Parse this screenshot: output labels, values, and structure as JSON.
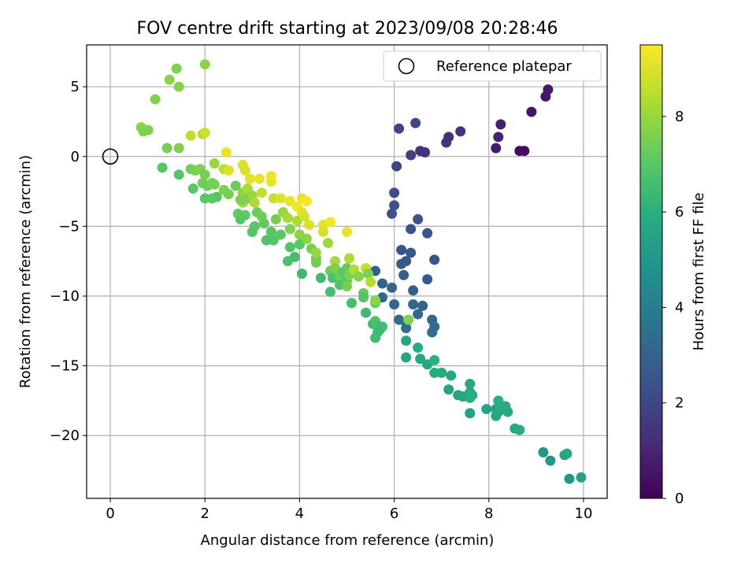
{
  "chart_data": {
    "type": "scatter",
    "title": "FOV centre drift starting at 2023/09/08 20:28:46",
    "xlabel": "Angular distance from reference (arcmin)",
    "ylabel": "Rotation from reference (arcmin)",
    "xlim": [
      -0.5,
      10.5
    ],
    "ylim": [
      -24.5,
      8.0
    ],
    "xticks": [
      0,
      2,
      4,
      6,
      8,
      10
    ],
    "xtick_labels": [
      "0",
      "2",
      "4",
      "6",
      "8",
      "10"
    ],
    "yticks": [
      5,
      0,
      -5,
      -10,
      -15,
      -20
    ],
    "ytick_labels": [
      "5",
      "0",
      "−5",
      "−10",
      "−15",
      "−20"
    ],
    "grid": true,
    "legend": {
      "location": "upper right",
      "entries": [
        "Reference platepar"
      ]
    },
    "reference_point": {
      "x": 0,
      "y": 0,
      "marker": "hollow circle"
    },
    "colorbar": {
      "label": "Hours from first FF file",
      "colormap": "viridis",
      "range": [
        0,
        9.5
      ],
      "ticks": [
        0,
        2,
        4,
        6,
        8
      ],
      "tick_labels": [
        "0",
        "2",
        "4",
        "6",
        "8"
      ]
    },
    "series": [
      {
        "color_by": "hours",
        "points": [
          {
            "x": 8.9,
            "y": 3.2,
            "h": 0.5
          },
          {
            "x": 9.2,
            "y": 4.3,
            "h": 0.6
          },
          {
            "x": 9.25,
            "y": 4.8,
            "h": 0.6
          },
          {
            "x": 8.65,
            "y": 0.4,
            "h": 0.3
          },
          {
            "x": 8.75,
            "y": 0.4,
            "h": 0.3
          },
          {
            "x": 8.15,
            "y": 0.6,
            "h": 0.7
          },
          {
            "x": 8.2,
            "y": 1.4,
            "h": 0.9
          },
          {
            "x": 8.25,
            "y": 2.3,
            "h": 0.8
          },
          {
            "x": 7.4,
            "y": 1.8,
            "h": 1.3
          },
          {
            "x": 7.15,
            "y": 1.4,
            "h": 1.2
          },
          {
            "x": 7.1,
            "y": 1.0,
            "h": 1.3
          },
          {
            "x": 6.55,
            "y": 0.4,
            "h": 1.4
          },
          {
            "x": 6.65,
            "y": 0.3,
            "h": 1.3
          },
          {
            "x": 6.35,
            "y": 0.1,
            "h": 1.8
          },
          {
            "x": 6.1,
            "y": 2.0,
            "h": 1.9
          },
          {
            "x": 6.45,
            "y": 2.4,
            "h": 2.0
          },
          {
            "x": 6.05,
            "y": -0.7,
            "h": 2.0
          },
          {
            "x": 6.0,
            "y": -2.6,
            "h": 2.2
          },
          {
            "x": 6.0,
            "y": -3.5,
            "h": 2.3
          },
          {
            "x": 5.95,
            "y": -4.1,
            "h": 2.4
          },
          {
            "x": 6.5,
            "y": -4.5,
            "h": 2.3
          },
          {
            "x": 6.35,
            "y": -5.2,
            "h": 2.4
          },
          {
            "x": 6.7,
            "y": -5.5,
            "h": 2.4
          },
          {
            "x": 6.15,
            "y": -6.7,
            "h": 2.5
          },
          {
            "x": 6.35,
            "y": -6.9,
            "h": 2.6
          },
          {
            "x": 6.85,
            "y": -7.4,
            "h": 2.5
          },
          {
            "x": 6.25,
            "y": -7.5,
            "h": 2.6
          },
          {
            "x": 6.15,
            "y": -7.7,
            "h": 2.7
          },
          {
            "x": 6.2,
            "y": -8.5,
            "h": 2.8
          },
          {
            "x": 6.7,
            "y": -8.8,
            "h": 2.6
          },
          {
            "x": 5.6,
            "y": -8.2,
            "h": 2.9
          },
          {
            "x": 5.75,
            "y": -9.1,
            "h": 3.0
          },
          {
            "x": 5.95,
            "y": -9.4,
            "h": 3.1
          },
          {
            "x": 6.4,
            "y": -9.6,
            "h": 2.8
          },
          {
            "x": 5.75,
            "y": -10.1,
            "h": 3.2
          },
          {
            "x": 6.0,
            "y": -10.6,
            "h": 3.1
          },
          {
            "x": 6.4,
            "y": -10.6,
            "h": 3.1
          },
          {
            "x": 6.6,
            "y": -10.7,
            "h": 3.0
          },
          {
            "x": 6.5,
            "y": -11.3,
            "h": 3.2
          },
          {
            "x": 6.1,
            "y": -11.7,
            "h": 3.3
          },
          {
            "x": 6.25,
            "y": -11.9,
            "h": 3.4
          },
          {
            "x": 6.8,
            "y": -11.7,
            "h": 3.2
          },
          {
            "x": 6.85,
            "y": -12.2,
            "h": 3.3
          },
          {
            "x": 6.8,
            "y": -12.6,
            "h": 3.4
          },
          {
            "x": 6.25,
            "y": -12.3,
            "h": 3.5
          },
          {
            "x": 6.25,
            "y": -13.2,
            "h": 5.6
          },
          {
            "x": 6.25,
            "y": -14.4,
            "h": 5.6
          },
          {
            "x": 6.5,
            "y": -13.7,
            "h": 5.8
          },
          {
            "x": 6.55,
            "y": -14.5,
            "h": 5.7
          },
          {
            "x": 6.7,
            "y": -14.9,
            "h": 5.6
          },
          {
            "x": 6.85,
            "y": -14.6,
            "h": 6.0
          },
          {
            "x": 6.85,
            "y": -15.5,
            "h": 5.9
          },
          {
            "x": 7.0,
            "y": -15.5,
            "h": 5.8
          },
          {
            "x": 7.2,
            "y": -15.7,
            "h": 5.6
          },
          {
            "x": 7.15,
            "y": -16.7,
            "h": 5.5
          },
          {
            "x": 7.35,
            "y": -17.1,
            "h": 5.5
          },
          {
            "x": 7.45,
            "y": -17.2,
            "h": 5.6
          },
          {
            "x": 7.6,
            "y": -16.3,
            "h": 5.6
          },
          {
            "x": 7.6,
            "y": -16.9,
            "h": 5.7
          },
          {
            "x": 7.65,
            "y": -17.1,
            "h": 5.8
          },
          {
            "x": 7.6,
            "y": -17.3,
            "h": 5.9
          },
          {
            "x": 7.6,
            "y": -18.4,
            "h": 5.4
          },
          {
            "x": 7.95,
            "y": -18.1,
            "h": 5.5
          },
          {
            "x": 8.15,
            "y": -18.1,
            "h": 5.5
          },
          {
            "x": 8.15,
            "y": -18.6,
            "h": 5.6
          },
          {
            "x": 8.2,
            "y": -18.3,
            "h": 5.6
          },
          {
            "x": 8.2,
            "y": -17.5,
            "h": 6.0
          },
          {
            "x": 8.25,
            "y": -17.9,
            "h": 5.9
          },
          {
            "x": 8.35,
            "y": -17.9,
            "h": 5.8
          },
          {
            "x": 8.4,
            "y": -18.3,
            "h": 5.8
          },
          {
            "x": 8.55,
            "y": -19.5,
            "h": 5.7
          },
          {
            "x": 8.65,
            "y": -19.6,
            "h": 5.8
          },
          {
            "x": 9.15,
            "y": -21.2,
            "h": 5.0
          },
          {
            "x": 9.3,
            "y": -21.8,
            "h": 5.0
          },
          {
            "x": 9.6,
            "y": -21.4,
            "h": 5.6
          },
          {
            "x": 9.65,
            "y": -21.3,
            "h": 5.7
          },
          {
            "x": 9.7,
            "y": -23.1,
            "h": 5.0
          },
          {
            "x": 9.95,
            "y": -23.0,
            "h": 5.4
          },
          {
            "x": 0.65,
            "y": 2.1,
            "h": 7.8
          },
          {
            "x": 0.7,
            "y": 1.8,
            "h": 7.7
          },
          {
            "x": 0.8,
            "y": 1.9,
            "h": 7.6
          },
          {
            "x": 0.95,
            "y": 4.1,
            "h": 7.7
          },
          {
            "x": 1.25,
            "y": 5.5,
            "h": 7.8
          },
          {
            "x": 1.4,
            "y": 6.3,
            "h": 7.6
          },
          {
            "x": 1.45,
            "y": 5.0,
            "h": 7.7
          },
          {
            "x": 2.0,
            "y": 6.6,
            "h": 7.8
          },
          {
            "x": 1.2,
            "y": 0.6,
            "h": 7.5
          },
          {
            "x": 1.45,
            "y": 0.6,
            "h": 7.6
          },
          {
            "x": 1.7,
            "y": 1.5,
            "h": 8.6
          },
          {
            "x": 1.95,
            "y": 1.6,
            "h": 8.6
          },
          {
            "x": 2.0,
            "y": 1.7,
            "h": 8.7
          },
          {
            "x": 1.1,
            "y": -0.8,
            "h": 7.0
          },
          {
            "x": 1.45,
            "y": -1.3,
            "h": 6.9
          },
          {
            "x": 1.7,
            "y": -0.9,
            "h": 7.4
          },
          {
            "x": 1.75,
            "y": -2.3,
            "h": 7.0
          },
          {
            "x": 1.8,
            "y": -1.0,
            "h": 7.5
          },
          {
            "x": 1.9,
            "y": -0.9,
            "h": 7.6
          },
          {
            "x": 2.0,
            "y": -1.3,
            "h": 7.5
          },
          {
            "x": 1.95,
            "y": -1.9,
            "h": 7.4
          },
          {
            "x": 2.05,
            "y": -2.1,
            "h": 7.3
          },
          {
            "x": 2.15,
            "y": -1.9,
            "h": 7.6
          },
          {
            "x": 2.2,
            "y": -2.0,
            "h": 7.5
          },
          {
            "x": 2.0,
            "y": -3.0,
            "h": 7.0
          },
          {
            "x": 2.15,
            "y": -3.0,
            "h": 7.1
          },
          {
            "x": 2.25,
            "y": -2.9,
            "h": 7.0
          },
          {
            "x": 2.2,
            "y": -0.5,
            "h": 8.0
          },
          {
            "x": 2.4,
            "y": -0.9,
            "h": 8.5
          },
          {
            "x": 2.45,
            "y": 0.3,
            "h": 9.2
          },
          {
            "x": 2.5,
            "y": -1.0,
            "h": 9.0
          },
          {
            "x": 2.4,
            "y": -2.4,
            "h": 7.6
          },
          {
            "x": 2.5,
            "y": -2.7,
            "h": 7.5
          },
          {
            "x": 2.65,
            "y": -2.1,
            "h": 7.3
          },
          {
            "x": 2.8,
            "y": -0.6,
            "h": 9.0
          },
          {
            "x": 2.85,
            "y": -1.0,
            "h": 8.9
          },
          {
            "x": 2.8,
            "y": -2.6,
            "h": 7.8
          },
          {
            "x": 2.8,
            "y": -3.3,
            "h": 8.1
          },
          {
            "x": 2.75,
            "y": -3.1,
            "h": 7.6
          },
          {
            "x": 2.9,
            "y": -2.3,
            "h": 8.2
          },
          {
            "x": 2.9,
            "y": -3.0,
            "h": 7.6
          },
          {
            "x": 2.7,
            "y": -4.1,
            "h": 7.2
          },
          {
            "x": 2.75,
            "y": -4.5,
            "h": 7.0
          },
          {
            "x": 2.85,
            "y": -4.2,
            "h": 7.1
          },
          {
            "x": 2.95,
            "y": -1.6,
            "h": 9.1
          },
          {
            "x": 3.0,
            "y": -2.8,
            "h": 8.0
          },
          {
            "x": 3.05,
            "y": -3.3,
            "h": 8.3
          },
          {
            "x": 3.1,
            "y": -4.0,
            "h": 7.3
          },
          {
            "x": 3.05,
            "y": -5.0,
            "h": 7.0
          },
          {
            "x": 3.0,
            "y": -5.4,
            "h": 6.9
          },
          {
            "x": 3.15,
            "y": -1.6,
            "h": 9.2
          },
          {
            "x": 3.2,
            "y": -2.6,
            "h": 8.6
          },
          {
            "x": 3.2,
            "y": -4.3,
            "h": 7.4
          },
          {
            "x": 3.25,
            "y": -4.8,
            "h": 7.2
          },
          {
            "x": 3.3,
            "y": -6.0,
            "h": 6.8
          },
          {
            "x": 3.4,
            "y": -1.4,
            "h": 9.3
          },
          {
            "x": 3.4,
            "y": -1.8,
            "h": 9.2
          },
          {
            "x": 3.45,
            "y": -3.0,
            "h": 8.7
          },
          {
            "x": 3.4,
            "y": -5.4,
            "h": 7.0
          },
          {
            "x": 3.45,
            "y": -6.0,
            "h": 6.9
          },
          {
            "x": 3.5,
            "y": -4.5,
            "h": 7.5
          },
          {
            "x": 3.6,
            "y": -5.6,
            "h": 7.1
          },
          {
            "x": 3.6,
            "y": -3.0,
            "h": 9.0
          },
          {
            "x": 3.65,
            "y": -4.0,
            "h": 8.0
          },
          {
            "x": 3.75,
            "y": -4.4,
            "h": 8.2
          },
          {
            "x": 3.8,
            "y": -3.2,
            "h": 9.2
          },
          {
            "x": 3.8,
            "y": -5.2,
            "h": 7.6
          },
          {
            "x": 3.8,
            "y": -6.5,
            "h": 6.9
          },
          {
            "x": 3.75,
            "y": -7.5,
            "h": 6.7
          },
          {
            "x": 3.9,
            "y": -7.2,
            "h": 6.6
          },
          {
            "x": 3.95,
            "y": -3.6,
            "h": 9.3
          },
          {
            "x": 3.95,
            "y": -4.6,
            "h": 8.3
          },
          {
            "x": 4.0,
            "y": -5.6,
            "h": 7.8
          },
          {
            "x": 4.0,
            "y": -6.3,
            "h": 7.0
          },
          {
            "x": 4.05,
            "y": -3.0,
            "h": 9.2
          },
          {
            "x": 4.05,
            "y": -4.0,
            "h": 9.1
          },
          {
            "x": 4.1,
            "y": -4.3,
            "h": 8.9
          },
          {
            "x": 4.15,
            "y": -5.9,
            "h": 7.8
          },
          {
            "x": 4.15,
            "y": -3.2,
            "h": 9.4
          },
          {
            "x": 4.05,
            "y": -8.4,
            "h": 6.4
          },
          {
            "x": 4.2,
            "y": -4.9,
            "h": 9.0
          },
          {
            "x": 4.25,
            "y": -6.6,
            "h": 7.5
          },
          {
            "x": 4.35,
            "y": -7.3,
            "h": 7.3
          },
          {
            "x": 4.35,
            "y": -7.6,
            "h": 7.4
          },
          {
            "x": 4.35,
            "y": -6.9,
            "h": 8.0
          },
          {
            "x": 4.45,
            "y": -8.7,
            "h": 6.5
          },
          {
            "x": 4.5,
            "y": -4.9,
            "h": 9.1
          },
          {
            "x": 4.5,
            "y": -5.4,
            "h": 8.9
          },
          {
            "x": 4.6,
            "y": -6.2,
            "h": 8.1
          },
          {
            "x": 4.65,
            "y": -4.7,
            "h": 9.3
          },
          {
            "x": 4.65,
            "y": -8.2,
            "h": 7.3
          },
          {
            "x": 4.65,
            "y": -9.7,
            "h": 6.6
          },
          {
            "x": 4.7,
            "y": -8.7,
            "h": 6.7
          },
          {
            "x": 4.75,
            "y": -7.5,
            "h": 8.2
          },
          {
            "x": 4.75,
            "y": -8.0,
            "h": 7.6
          },
          {
            "x": 4.85,
            "y": -8.6,
            "h": 7.4
          },
          {
            "x": 4.85,
            "y": -9.2,
            "h": 6.8
          },
          {
            "x": 4.9,
            "y": -8.3,
            "h": 7.1
          },
          {
            "x": 5.0,
            "y": -8.0,
            "h": 7.2
          },
          {
            "x": 5.0,
            "y": -8.9,
            "h": 7.0
          },
          {
            "x": 5.0,
            "y": -9.3,
            "h": 7.5
          },
          {
            "x": 5.05,
            "y": -7.3,
            "h": 8.3
          },
          {
            "x": 5.05,
            "y": -8.5,
            "h": 7.6
          },
          {
            "x": 5.0,
            "y": -5.4,
            "h": 9.2
          },
          {
            "x": 5.1,
            "y": -10.5,
            "h": 6.6
          },
          {
            "x": 5.15,
            "y": -8.1,
            "h": 8.4
          },
          {
            "x": 5.25,
            "y": -8.6,
            "h": 7.7
          },
          {
            "x": 5.35,
            "y": -9.8,
            "h": 7.2
          },
          {
            "x": 5.35,
            "y": -10.1,
            "h": 6.9
          },
          {
            "x": 5.4,
            "y": -11.2,
            "h": 6.4
          },
          {
            "x": 5.4,
            "y": -8.0,
            "h": 8.6
          },
          {
            "x": 5.45,
            "y": -8.4,
            "h": 7.6
          },
          {
            "x": 5.5,
            "y": -9.0,
            "h": 8.4
          },
          {
            "x": 5.55,
            "y": -12.0,
            "h": 6.5
          },
          {
            "x": 5.6,
            "y": -10.5,
            "h": 7.2
          },
          {
            "x": 5.6,
            "y": -10.3,
            "h": 7.8
          },
          {
            "x": 5.6,
            "y": -11.8,
            "h": 6.8
          },
          {
            "x": 5.65,
            "y": -12.1,
            "h": 6.6
          },
          {
            "x": 5.7,
            "y": -12.4,
            "h": 6.7
          },
          {
            "x": 5.75,
            "y": -12.2,
            "h": 6.6
          },
          {
            "x": 5.65,
            "y": -12.6,
            "h": 6.4
          },
          {
            "x": 5.6,
            "y": -13.0,
            "h": 6.5
          },
          {
            "x": 6.3,
            "y": -11.7,
            "h": 7.6
          }
        ]
      }
    ]
  }
}
